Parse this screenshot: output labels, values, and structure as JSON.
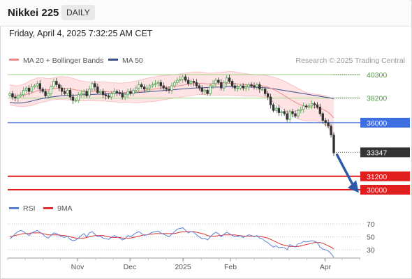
{
  "header": {
    "title": "Nikkei 225",
    "timeframe": "DAILY",
    "datetime": "Friday, April 4, 2025 7:32:25 AM CET"
  },
  "colors": {
    "ma20": "#f08a8a",
    "ma50": "#3a4f8a",
    "band_fill": "#fde3e3",
    "bull": "#4fa04f",
    "bear": "#333333",
    "resistance": "#9fd38a",
    "support_blue": "#3d6fe0",
    "support_red": "#e01e1e",
    "current_tag": "#333333",
    "rsi": "#5b82d8",
    "rsi_ma": "#e03030",
    "arrow": "#2b5ba8"
  },
  "chart_data": [
    {
      "type": "candlestick",
      "legend": [
        {
          "name": "MA 20 + Bollinger Bands",
          "color": "#f08a8a"
        },
        {
          "name": "MA 50",
          "color": "#3a4f8a"
        }
      ],
      "credit": "Research © 2025 Trading Central",
      "x_ticks": [
        "Nov",
        "Dec",
        "2025",
        "Feb",
        "Apr"
      ],
      "levels": [
        {
          "value": 40300,
          "label": "40300",
          "kind": "resistance",
          "color": "#9fd38a"
        },
        {
          "value": 38200,
          "label": "38200",
          "kind": "resistance",
          "color": "#9fd38a"
        },
        {
          "value": 36000,
          "label": "36000",
          "kind": "support",
          "color": "#3d6fe0"
        },
        {
          "value": 31200,
          "label": "31200",
          "kind": "support",
          "color": "#e01e1e"
        },
        {
          "value": 30000,
          "label": "30000",
          "kind": "support",
          "color": "#e01e1e"
        }
      ],
      "current_price": {
        "value": 33347,
        "label": "33347"
      },
      "ylim": [
        28800,
        42300
      ],
      "close": [
        38600,
        38300,
        38200,
        38400,
        38500,
        38900,
        39100,
        38800,
        39200,
        39300,
        39500,
        39000,
        38800,
        38400,
        38600,
        39200,
        39700,
        39400,
        39100,
        38800,
        38600,
        38900,
        38300,
        38000,
        38000,
        38500,
        38600,
        38800,
        38400,
        39000,
        39500,
        39200,
        38700,
        38800,
        38500,
        38400,
        38300,
        38600,
        38800,
        38700,
        38600,
        38300,
        38500,
        38800,
        38600,
        38900,
        39100,
        39400,
        39200,
        39000,
        39100,
        39300,
        39400,
        39500,
        39600,
        39300,
        39100,
        39000,
        38900,
        39300,
        39600,
        39800,
        39900,
        40100,
        39800,
        39500,
        39700,
        39600,
        39300,
        39100,
        38800,
        38900,
        38600,
        39300,
        39500,
        39800,
        39600,
        39100,
        39600,
        40000,
        39700,
        39300,
        39100,
        39100,
        39300,
        39100,
        39200,
        39400,
        39300,
        39200,
        39400,
        39000,
        39000,
        38600,
        38300,
        37600,
        37100,
        37300,
        36900,
        37000,
        36800,
        36300,
        37000,
        36800,
        36600,
        37100,
        37200,
        37500,
        37400,
        37500,
        37700,
        37600,
        37400,
        36800,
        36200,
        36000,
        35700,
        34900,
        33300
      ],
      "ma20": [
        38500,
        38450,
        38400,
        38380,
        38400,
        38450,
        38520,
        38600,
        38680,
        38760,
        38850,
        38900,
        38920,
        38930,
        38950,
        38990,
        39040,
        39080,
        39100,
        39100,
        39080,
        39060,
        39020,
        38980,
        38930,
        38880,
        38850,
        38830,
        38810,
        38800,
        38810,
        38820,
        38810,
        38800,
        38790,
        38780,
        38760,
        38740,
        38720,
        38700,
        38690,
        38690,
        38700,
        38710,
        38720,
        38740,
        38760,
        38790,
        38830,
        38870,
        38910,
        38950,
        38990,
        39020,
        39060,
        39100,
        39130,
        39160,
        39190,
        39220,
        39250,
        39280,
        39320,
        39360,
        39400,
        39440,
        39470,
        39500,
        39520,
        39520,
        39510,
        39490,
        39470,
        39460,
        39460,
        39470,
        39480,
        39490,
        39500,
        39520,
        39530,
        39520,
        39500,
        39470,
        39440,
        39410,
        39380,
        39360,
        39350,
        39340,
        39330,
        39320,
        39290,
        39250,
        39180,
        39080,
        38970,
        38850,
        38720,
        38580,
        38420,
        38260,
        38100,
        37960,
        37830,
        37700,
        37590,
        37500,
        37440,
        37400,
        37380,
        37360,
        37330,
        37280,
        37200,
        37080,
        36920,
        36700,
        36420
      ],
      "bb_width": [
        900,
        900,
        900,
        920,
        950,
        1000,
        1050,
        1100,
        1150,
        1150,
        1150,
        1120,
        1100,
        1050,
        1000,
        980,
        980,
        1000,
        1020,
        1030,
        1030,
        1020,
        1000,
        980,
        950,
        920,
        900,
        880,
        860,
        850,
        850,
        850,
        850,
        850,
        850,
        850,
        850,
        850,
        850,
        850,
        850,
        860,
        880,
        900,
        920,
        950,
        980,
        1000,
        1020,
        1040,
        1060,
        1080,
        1100,
        1100,
        1100,
        1100,
        1090,
        1080,
        1070,
        1060,
        1050,
        1050,
        1050,
        1050,
        1050,
        1050,
        1040,
        1030,
        1020,
        1010,
        1000,
        990,
        980,
        980,
        990,
        1000,
        1010,
        1020,
        1030,
        1040,
        1050,
        1050,
        1040,
        1030,
        1020,
        1010,
        1000,
        990,
        980,
        970,
        960,
        960,
        970,
        990,
        1020,
        1060,
        1100,
        1150,
        1200,
        1250,
        1300,
        1340,
        1360,
        1370,
        1370,
        1360,
        1340,
        1300,
        1270,
        1240,
        1220,
        1200,
        1200,
        1220,
        1260,
        1320,
        1400,
        1500,
        1620
      ],
      "ma50": [
        37800,
        37780,
        37760,
        37750,
        37760,
        37790,
        37830,
        37880,
        37940,
        38000,
        38060,
        38120,
        38170,
        38210,
        38250,
        38290,
        38330,
        38360,
        38390,
        38410,
        38430,
        38440,
        38450,
        38460,
        38470,
        38480,
        38490,
        38500,
        38510,
        38520,
        38530,
        38540,
        38550,
        38560,
        38570,
        38580,
        38590,
        38600,
        38610,
        38620,
        38630,
        38640,
        38650,
        38660,
        38670,
        38680,
        38690,
        38700,
        38720,
        38740,
        38760,
        38780,
        38800,
        38820,
        38840,
        38860,
        38880,
        38900,
        38920,
        38940,
        38960,
        38980,
        39000,
        39020,
        39040,
        39060,
        39080,
        39100,
        39110,
        39120,
        39130,
        39140,
        39150,
        39160,
        39170,
        39180,
        39185,
        39190,
        39195,
        39200,
        39205,
        39208,
        39210,
        39210,
        39208,
        39205,
        39200,
        39190,
        39180,
        39170,
        39160,
        39150,
        39140,
        39120,
        39100,
        39070,
        39040,
        39000,
        38960,
        38920,
        38880,
        38840,
        38800,
        38760,
        38720,
        38680,
        38640,
        38600,
        38560,
        38520,
        38480,
        38440,
        38400,
        38360,
        38320,
        38280,
        38240,
        38200,
        38160
      ]
    },
    {
      "type": "line",
      "title": "RSI",
      "legend": [
        {
          "name": "RSI",
          "color": "#5b82d8"
        },
        {
          "name": "9MA",
          "color": "#e03030"
        }
      ],
      "y_ticks": [
        70,
        50,
        30
      ],
      "ylim": [
        18,
        78
      ],
      "rsi": [
        47,
        50,
        55,
        58,
        60,
        58,
        55,
        52,
        56,
        58,
        60,
        57,
        54,
        50,
        48,
        52,
        56,
        55,
        52,
        50,
        49,
        51,
        46,
        44,
        45,
        48,
        52,
        55,
        50,
        56,
        58,
        54,
        50,
        51,
        48,
        47,
        46,
        49,
        52,
        50,
        48,
        45,
        47,
        52,
        50,
        53,
        56,
        58,
        55,
        52,
        53,
        55,
        57,
        58,
        59,
        56,
        54,
        52,
        50,
        54,
        58,
        62,
        63,
        64,
        60,
        56,
        58,
        57,
        53,
        50,
        47,
        48,
        45,
        50,
        54,
        57,
        55,
        50,
        54,
        57,
        55,
        52,
        50,
        50,
        52,
        49,
        51,
        53,
        52,
        50,
        52,
        48,
        47,
        43,
        41,
        37,
        34,
        36,
        33,
        34,
        33,
        30,
        38,
        36,
        34,
        39,
        40,
        43,
        42,
        43,
        44,
        43,
        41,
        34,
        31,
        30,
        28,
        24,
        18
      ],
      "rsi_ma": [
        50,
        51,
        52,
        53,
        54,
        55,
        55,
        55,
        56,
        56,
        56,
        56,
        55,
        54,
        53,
        53,
        53,
        53,
        53,
        52,
        52,
        51,
        50,
        49,
        48,
        48,
        48,
        48,
        49,
        50,
        51,
        52,
        52,
        52,
        52,
        51,
        50,
        49,
        49,
        49,
        49,
        48,
        48,
        48,
        48,
        49,
        50,
        51,
        52,
        53,
        53,
        54,
        54,
        55,
        55,
        55,
        55,
        55,
        55,
        55,
        55,
        56,
        57,
        58,
        58,
        58,
        58,
        58,
        57,
        56,
        55,
        54,
        52,
        51,
        51,
        51,
        52,
        52,
        53,
        53,
        53,
        53,
        53,
        52,
        52,
        51,
        51,
        51,
        51,
        51,
        51,
        50,
        50,
        49,
        48,
        46,
        44,
        42,
        40,
        38,
        37,
        36,
        35,
        35,
        35,
        35,
        36,
        37,
        38,
        39,
        40,
        41,
        41,
        41,
        40,
        38,
        36,
        34,
        31
      ]
    }
  ]
}
